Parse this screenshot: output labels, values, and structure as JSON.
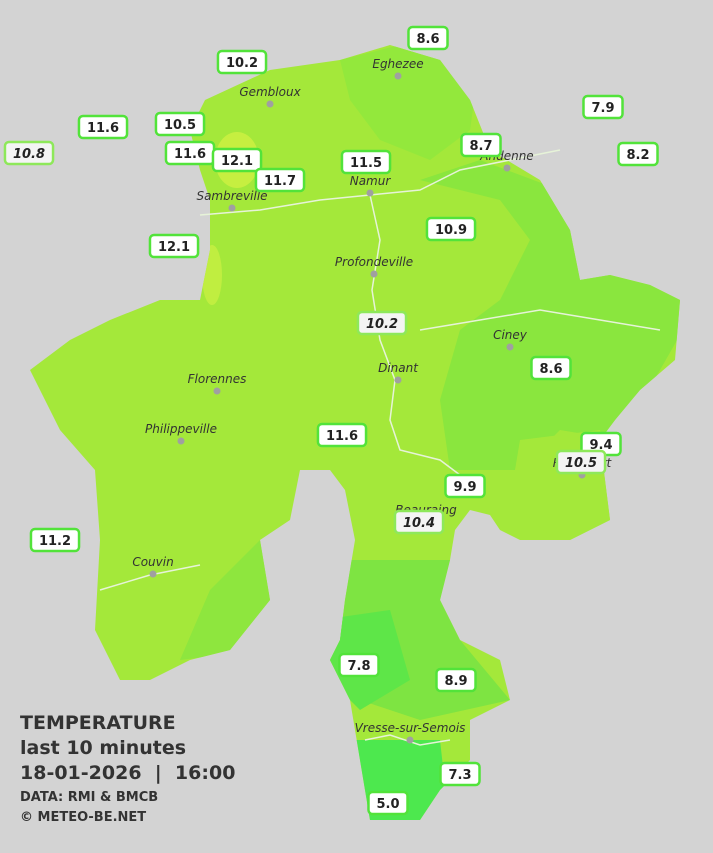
{
  "cities": [
    "Eghezee",
    "Gembloux",
    "Andenne",
    "Namur",
    "Sambreville",
    "Profondeville",
    "Ciney",
    "Dinant",
    "Florennes",
    "Philippeville",
    "Rochefort",
    "Beauraing",
    "Couvin",
    "Vresse-sur-Semois"
  ],
  "stations": [
    "8.6",
    "10.2",
    "7.9",
    "11.6",
    "10.5",
    "10.8",
    "11.6",
    "12.1",
    "8.7",
    "8.2",
    "11.5",
    "11.7",
    "12.1",
    "10.9",
    "10.2",
    "8.6",
    "11.6",
    "9.4",
    "10.5",
    "9.9",
    "10.4",
    "11.2",
    "7.8",
    "8.9",
    "7.3",
    "5.0"
  ],
  "legend": {
    "title": "TEMPERATURE",
    "subtitle": "last 10 minutes",
    "datetime": "18-01-2026  |  16:00",
    "source": "DATA: RMI & BMCB",
    "copyright": "© METEO-BE.NET"
  }
}
